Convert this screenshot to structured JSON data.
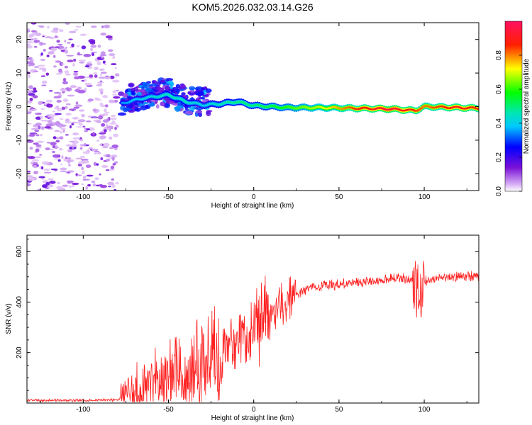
{
  "title": "KOM5.2026.032.03.14.G26",
  "chart_data": [
    {
      "type": "heatmap",
      "xlabel": "Height of straight line (km)",
      "ylabel": "Frequency (Hz)",
      "xlim": [
        -133,
        132
      ],
      "ylim": [
        -25,
        25
      ],
      "xticks": [
        "-100",
        "-50",
        "0",
        "50",
        "100"
      ],
      "yticks": [
        "20",
        "10",
        "0",
        "-10",
        "-20"
      ],
      "colorbar": {
        "label": "Normalized spectral amplitude",
        "range": [
          0,
          1
        ],
        "ticks": [
          "0.0",
          "0.2",
          "0.4",
          "0.6",
          "0.8"
        ]
      },
      "noise_region_km": [
        -133,
        -80
      ],
      "ridge": {
        "description_points": [
          {
            "x": -77,
            "freq": 1.0,
            "amp": 0.35
          },
          {
            "x": -65,
            "freq": 2.5,
            "amp": 0.4
          },
          {
            "x": -50,
            "freq": 3.5,
            "amp": 0.45
          },
          {
            "x": -40,
            "freq": 1.5,
            "amp": 0.45
          },
          {
            "x": -30,
            "freq": 0.5,
            "amp": 0.4
          },
          {
            "x": -20,
            "freq": 0.8,
            "amp": 0.45
          },
          {
            "x": -10,
            "freq": 1.5,
            "amp": 0.5
          },
          {
            "x": 0,
            "freq": 0.3,
            "amp": 0.5
          },
          {
            "x": 20,
            "freq": -0.3,
            "amp": 0.6
          },
          {
            "x": 40,
            "freq": -0.3,
            "amp": 0.7
          },
          {
            "x": 60,
            "freq": -0.5,
            "amp": 0.85
          },
          {
            "x": 80,
            "freq": -0.7,
            "amp": 0.95
          },
          {
            "x": 95,
            "freq": -1.2,
            "amp": 0.85
          },
          {
            "x": 100,
            "freq": 0.0,
            "amp": 0.8
          },
          {
            "x": 120,
            "freq": -0.3,
            "amp": 0.9
          },
          {
            "x": 132,
            "freq": -0.5,
            "amp": 0.85
          }
        ]
      }
    },
    {
      "type": "line",
      "xlabel": "Height of straight line (km)",
      "ylabel": "SNR (v/v)",
      "xlim": [
        -133,
        132
      ],
      "ylim": [
        0,
        665
      ],
      "xticks": [
        "-100",
        "-50",
        "0",
        "50",
        "100"
      ],
      "yticks": [
        "600",
        "400",
        "200"
      ],
      "series": [
        {
          "name": "SNR",
          "color": "#ff2020",
          "x": [
            -133,
            -80,
            -75,
            -65,
            -55,
            -45,
            -35,
            -28,
            -20,
            -10,
            0,
            10,
            20,
            25,
            30,
            40,
            50,
            60,
            66,
            70,
            80,
            90,
            95,
            97,
            100,
            110,
            120,
            132
          ],
          "y": [
            10,
            12,
            30,
            60,
            80,
            110,
            150,
            200,
            180,
            230,
            290,
            360,
            410,
            430,
            450,
            465,
            470,
            475,
            485,
            480,
            490,
            495,
            480,
            420,
            480,
            500,
            500,
            505
          ]
        }
      ]
    }
  ]
}
